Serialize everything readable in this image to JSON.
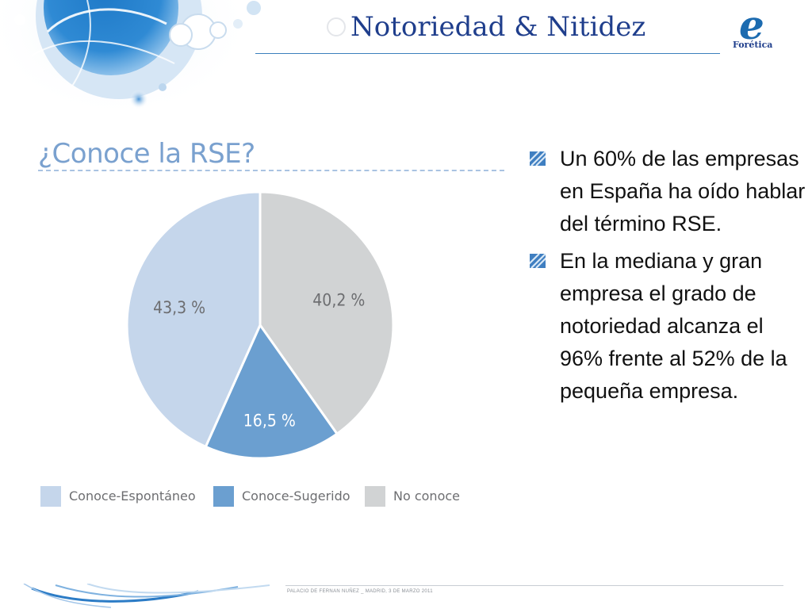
{
  "slide": {
    "title": "Notoriedad & Nitidez",
    "logo_text": "Forética",
    "logo_mark": "e",
    "footer": "PALACIO DE FERNAN NUÑEZ _ MADRID, 3 DE MARZO 2011"
  },
  "bullets": [
    "Un 60% de las empresas en España ha oído hablar del término RSE.",
    "En la mediana y gran empresa el grado de notoriedad alcanza el 96% frente al 52% de la pequeña empresa."
  ],
  "chart_data": {
    "type": "pie",
    "title": "¿Conoce la RSE?",
    "slices": [
      {
        "name": "No conoce",
        "value": 40.2,
        "label": "40,2 %",
        "color": "#d1d3d4"
      },
      {
        "name": "Conoce-Sugerido",
        "value": 16.5,
        "label": "16,5 %",
        "color": "#6b9fd0"
      },
      {
        "name": "Conoce-Espontáneo",
        "value": 43.3,
        "label": "43,3 %",
        "color": "#c5d6eb"
      }
    ],
    "legend": [
      "Conoce-Espontáneo",
      "Conoce-Sugerido",
      "No conoce"
    ],
    "legend_colors": [
      "#c5d6eb",
      "#6b9fd0",
      "#d1d3d4"
    ],
    "legend_position": "bottom",
    "start": "top, clockwise"
  },
  "colors": {
    "title": "#1f3e8c",
    "accent": "#3b7fbd",
    "chart_title": "#7aa1cf"
  }
}
